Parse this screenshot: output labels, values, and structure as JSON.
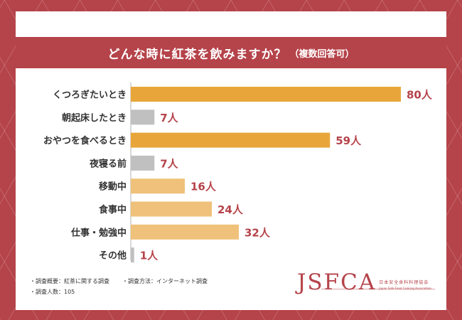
{
  "header": {
    "title": "どんな時に紅茶を飲みますか？",
    "subtitle": "（複数回答可）"
  },
  "chart_data": {
    "type": "bar",
    "orientation": "horizontal",
    "categories": [
      "くつろぎたいとき",
      "朝起床したとき",
      "おやつを食べるとき",
      "夜寝る前",
      "移動中",
      "食事中",
      "仕事・勉強中",
      "その他"
    ],
    "values": [
      80,
      7,
      59,
      7,
      16,
      24,
      32,
      1
    ],
    "value_labels": [
      "80人",
      "7人",
      "59人",
      "7人",
      "16人",
      "24人",
      "32人",
      "1人"
    ],
    "bar_colors": [
      "#e8a63a",
      "#c0c0c0",
      "#e8a63a",
      "#c0c0c0",
      "#efc17a",
      "#efc17a",
      "#efc17a",
      "#c0c0c0"
    ],
    "title": "どんな時に紅茶を飲みますか？（複数回答可）",
    "xlim": [
      0,
      80
    ]
  },
  "footer": {
    "line1_a": "・調査概要：紅茶に関する調査",
    "line1_b": "・調査方法：インターネット調査",
    "line2": "・調査人数：105"
  },
  "logo": {
    "text": "JSFCA",
    "jp": "日本安全食料料理協会",
    "en": "Japan Safe Food Cooking Association"
  },
  "colors": {
    "accent": "#b5434a",
    "bar_main": "#e8a63a",
    "bar_light": "#efc17a",
    "bar_gray": "#c0c0c0"
  }
}
